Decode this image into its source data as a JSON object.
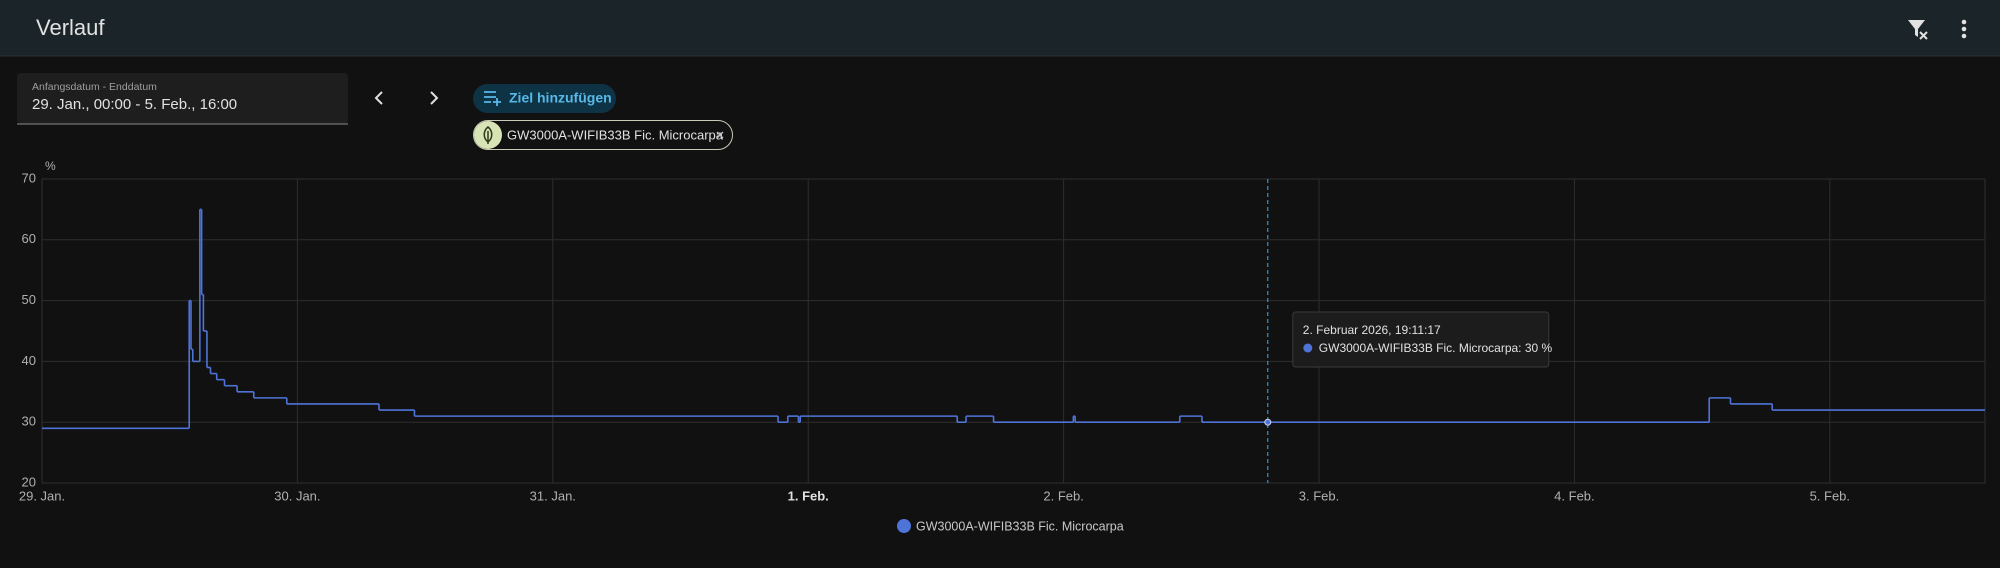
{
  "header": {
    "title": "Verlauf"
  },
  "controls": {
    "date_label": "Anfangsdatum - Enddatum",
    "date_value": "29. Jan., 00:00 - 5. Feb., 16:00",
    "add_button": "Ziel hinzufügen"
  },
  "chart_data": {
    "type": "line",
    "step": true,
    "y_unit": "%",
    "grid": true,
    "xlim": [
      "2026-01-29T00:00",
      "2026-02-05T14:35"
    ],
    "xticks": [
      {
        "value": "2026-01-29T00:00",
        "label": "29. Jan."
      },
      {
        "value": "2026-01-30T00:00",
        "label": "30. Jan."
      },
      {
        "value": "2026-01-31T00:00",
        "label": "31. Jan."
      },
      {
        "value": "2026-02-01T00:00",
        "label": "1. Feb."
      },
      {
        "value": "2026-02-02T00:00",
        "label": "2. Feb."
      },
      {
        "value": "2026-02-03T00:00",
        "label": "3. Feb."
      },
      {
        "value": "2026-02-04T00:00",
        "label": "4. Feb."
      },
      {
        "value": "2026-02-05T00:00",
        "label": "5. Feb."
      }
    ],
    "ylim": [
      20,
      70
    ],
    "yticks": [
      20,
      30,
      40,
      50,
      60,
      70
    ],
    "x": [
      "2026-01-29T00:00",
      "2026-01-29T13:50",
      "2026-01-29T14:00",
      "2026-01-29T14:10",
      "2026-01-29T14:50",
      "2026-01-29T15:00",
      "2026-01-29T15:10",
      "2026-01-29T15:30",
      "2026-01-29T15:50",
      "2026-01-29T16:25",
      "2026-01-29T17:09",
      "2026-01-29T18:20",
      "2026-01-29T19:54",
      "2026-01-29T23:00",
      "2026-01-30T07:40",
      "2026-01-30T11:00",
      "2026-01-31T21:10",
      "2026-01-31T22:05",
      "2026-01-31T23:05",
      "2026-01-31T23:15",
      "2026-02-01T14:00",
      "2026-02-01T14:50",
      "2026-02-01T17:25",
      "2026-02-02T00:55",
      "2026-02-02T01:05",
      "2026-02-02T10:55",
      "2026-02-02T13:00",
      "2026-02-04T12:40",
      "2026-02-04T14:40",
      "2026-02-04T18:35",
      "2026-02-05T14:35"
    ],
    "series": [
      {
        "name": "GW3000A-WIFIB33B Fic. Microcarpa",
        "color": "#4f74d8",
        "values": [
          29,
          50,
          42,
          40,
          65,
          51,
          45,
          39,
          38,
          37,
          36,
          35,
          34,
          33,
          32,
          31,
          30,
          31,
          30,
          31,
          30,
          31,
          30,
          31,
          30,
          31,
          30,
          34,
          33,
          32,
          32
        ]
      }
    ],
    "tooltip": {
      "x": "2026-02-02T19:11:17",
      "value": 30,
      "title": "2. Februar 2026, 19:11:17",
      "label": "GW3000A-WIFIB33B Fic. Microcarpa: 30 %"
    }
  }
}
